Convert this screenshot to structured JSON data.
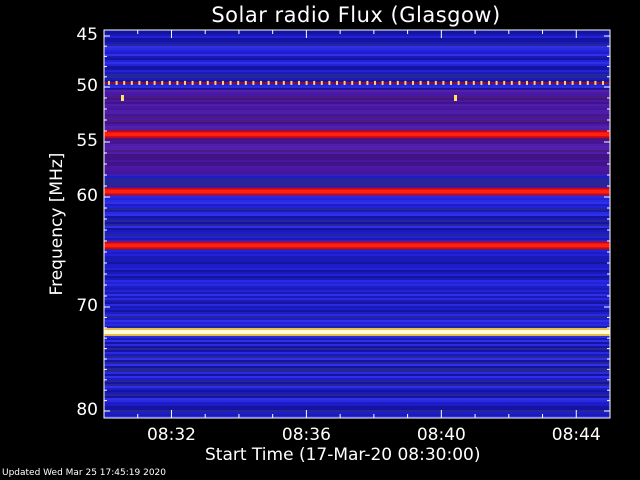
{
  "chart_data": {
    "type": "heatmap",
    "title": "Solar radio Flux (Glasgow)",
    "ylabel": "Frequency [MHz]",
    "xlabel": "Start Time (17-Mar-20 08:30:00)",
    "ylim": [
      45,
      80
    ],
    "y_ticks": [
      "45",
      "50",
      "55",
      "60",
      "70",
      "80"
    ],
    "x_ticks": [
      "08:32",
      "08:36",
      "08:40",
      "08:44"
    ],
    "x_tick_minutes": [
      32,
      36,
      40,
      44
    ],
    "xlim_minutes": [
      30,
      45
    ],
    "bright_bands_mhz": [
      {
        "freq": 49.6,
        "intensity": "spiky"
      },
      {
        "freq": 54.3,
        "intensity": "high"
      },
      {
        "freq": 59.5,
        "intensity": "high"
      },
      {
        "freq": 64.4,
        "intensity": "high"
      },
      {
        "freq": 72.4,
        "intensity": "saturated"
      }
    ],
    "colors": {
      "background": "#000000",
      "low": "#1e1ed0",
      "mid": "#c01020",
      "high": "#ffffff"
    }
  },
  "footer": "Updated Wed Mar 25 17:45:19 2020"
}
